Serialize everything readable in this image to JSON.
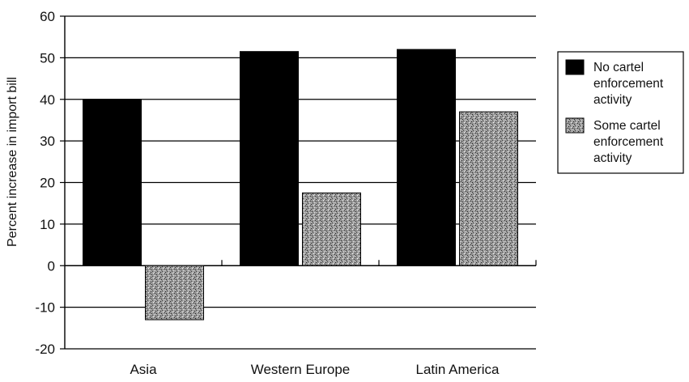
{
  "chart_data": {
    "type": "bar",
    "title": "",
    "xlabel": "",
    "ylabel": "Percent increase in import bill",
    "categories": [
      "Asia",
      "Western Europe",
      "Latin America"
    ],
    "ylim": [
      -20,
      60
    ],
    "yticks": [
      -20,
      -10,
      0,
      10,
      20,
      30,
      40,
      50,
      60
    ],
    "grid": true,
    "legend_position": "right",
    "series": [
      {
        "name": "No cartel enforcement activity",
        "name_lines": [
          "No cartel",
          "enforcement",
          "activity"
        ],
        "values": [
          40,
          51.5,
          52
        ],
        "color": "#000000",
        "pattern": "solid"
      },
      {
        "name": "Some cartel enforcement activity",
        "name_lines": [
          "Some cartel",
          "enforcement",
          "activity"
        ],
        "values": [
          -13,
          17.5,
          37
        ],
        "color": "#8c8c8c",
        "pattern": "stipple"
      }
    ]
  }
}
